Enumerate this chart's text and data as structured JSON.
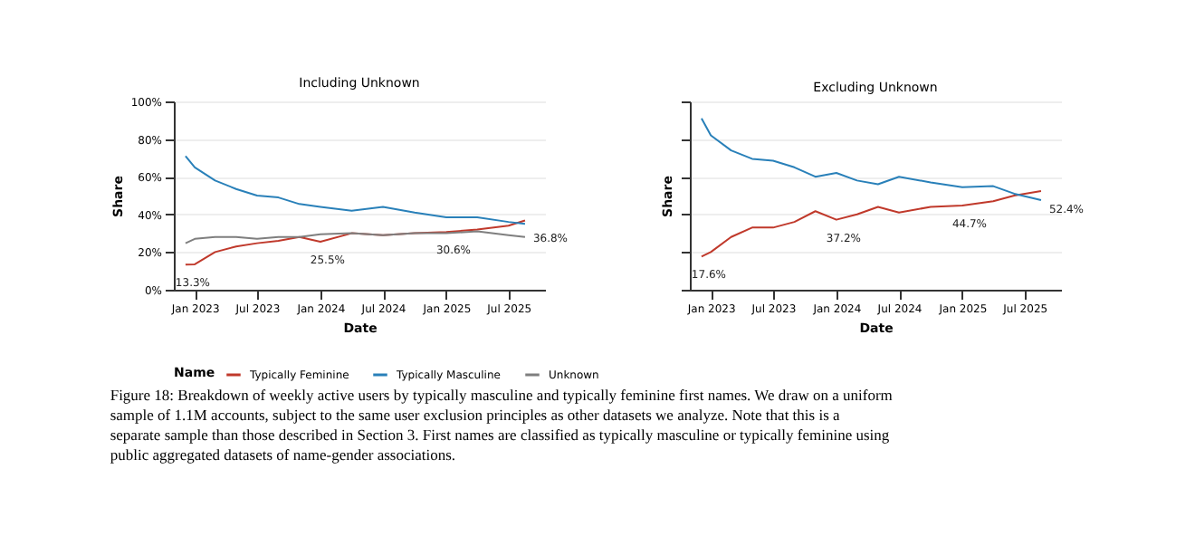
{
  "chart_data": [
    {
      "type": "line",
      "title": "Including Unknown",
      "xlabel": "Date",
      "ylabel": "Share",
      "legend_title": "Name",
      "legend": "bottom",
      "grid": "y",
      "line_style": "solid",
      "marker": "none",
      "x": [
        "2022-12-05",
        "2023-01-01",
        "2023-03-01",
        "2023-05-01",
        "2023-07-01",
        "2023-09-01",
        "2023-11-01",
        "2024-01-01",
        "2024-04-01",
        "2024-07-01",
        "2024-10-01",
        "2025-01-01",
        "2025-04-01",
        "2025-07-01",
        "2025-08-18"
      ],
      "xlim": [
        "2022-11-01",
        "2025-10-15"
      ],
      "xticks": [
        {
          "value": "2023-01-01",
          "label": "Jan 2023"
        },
        {
          "value": "2023-07-01",
          "label": "Jul 2023"
        },
        {
          "value": "2024-01-01",
          "label": "Jan 2024"
        },
        {
          "value": "2024-07-01",
          "label": "Jul 2024"
        },
        {
          "value": "2025-01-01",
          "label": "Jan 2025"
        },
        {
          "value": "2025-07-01",
          "label": "Jul 2025"
        }
      ],
      "ylim": [
        0,
        100
      ],
      "yticks": [
        {
          "value": 0,
          "label": "0%"
        },
        {
          "value": 20,
          "label": "20%"
        },
        {
          "value": 40,
          "label": "40%"
        },
        {
          "value": 60,
          "label": "60%"
        },
        {
          "value": 80,
          "label": "80%"
        },
        {
          "value": 100,
          "label": "100%"
        }
      ],
      "series": [
        {
          "name": "Typically Feminine",
          "color": "#c0392b",
          "values": [
            13.3,
            13.5,
            20,
            23,
            24.7,
            26,
            28,
            25.5,
            30,
            29,
            30,
            30.6,
            32,
            34,
            36.8
          ]
        },
        {
          "name": "Typically Masculine",
          "color": "#2980b9",
          "values": [
            71,
            65,
            58,
            53.5,
            50,
            49,
            45.5,
            44,
            42,
            44,
            41,
            38.5,
            38.5,
            36,
            35
          ]
        },
        {
          "name": "Unknown",
          "color": "#7f7f7f",
          "values": [
            24.7,
            27,
            28,
            28,
            27,
            28,
            28,
            29.5,
            30,
            29,
            30,
            30,
            31,
            29,
            28
          ]
        }
      ],
      "annotations": [
        {
          "text": "13.3%",
          "x": "2022-12-05",
          "y": 13.3
        },
        {
          "text": "25.5%",
          "x": "2024-01-01",
          "y": 25.5
        },
        {
          "text": "30.6%",
          "x": "2025-01-01",
          "y": 30.6
        },
        {
          "text": "36.8%",
          "x": "2025-08-18",
          "y": 36.8
        },
        "Figure 18: Breakdown of weekly active users by typically masculine and typically feminine first names. We draw on a uniform sample of 1.1M accounts, subject to the same user exclusion principles as other datasets we analyze. Note that this is a separate sample than those described in Section 3. First names are classified as typically masculine or typically feminine using public aggregated datasets of name-gender associations."
      ]
    },
    {
      "type": "line",
      "title": "Excluding Unknown",
      "xlabel": "Date",
      "ylabel": "Share",
      "grid": "y",
      "line_style": "solid",
      "marker": "none",
      "tick_labels": "x",
      "x": [
        "2022-12-05",
        "2023-01-01",
        "2023-03-01",
        "2023-05-01",
        "2023-07-01",
        "2023-09-01",
        "2023-11-01",
        "2024-01-01",
        "2024-03-01",
        "2024-05-01",
        "2024-07-01",
        "2024-10-01",
        "2025-01-01",
        "2025-04-01",
        "2025-06-01",
        "2025-08-18"
      ],
      "xlim": [
        "2022-11-01",
        "2025-10-15"
      ],
      "xticks": [
        {
          "value": "2023-01-01",
          "label": "Jan 2023"
        },
        {
          "value": "2023-07-01",
          "label": "Jul 2023"
        },
        {
          "value": "2024-01-01",
          "label": "Jan 2024"
        },
        {
          "value": "2024-07-01",
          "label": "Jul 2024"
        },
        {
          "value": "2025-01-01",
          "label": "Jan 2025"
        },
        {
          "value": "2025-07-01",
          "label": "Jul 2025"
        }
      ],
      "ylim": [
        0,
        100
      ],
      "yticks": [
        {
          "value": 0,
          "label": null
        },
        {
          "value": 20,
          "label": null
        },
        {
          "value": 40,
          "label": null
        },
        {
          "value": 60,
          "label": null
        },
        {
          "value": 80,
          "label": null
        },
        {
          "value": 100,
          "label": null
        }
      ],
      "series": [
        {
          "name": "Typically Feminine",
          "color": "#c0392b",
          "values": [
            17.6,
            20,
            28,
            33,
            33,
            36,
            41.7,
            37.2,
            40,
            44,
            41,
            44,
            44.7,
            47,
            50,
            52.4
          ]
        },
        {
          "name": "Typically Masculine",
          "color": "#2980b9",
          "values": [
            91,
            82,
            74,
            69.5,
            68.5,
            65,
            60,
            62,
            58,
            56,
            60,
            57,
            54.5,
            55,
            51,
            47.6
          ]
        }
      ],
      "annotations": [
        {
          "text": "17.6%",
          "x": "2022-12-05",
          "y": 17.6
        },
        {
          "text": "37.2%",
          "x": "2024-01-01",
          "y": 37.2
        },
        {
          "text": "44.7%",
          "x": "2025-01-01",
          "y": 44.7
        },
        {
          "text": "52.4%",
          "x": "2025-08-18",
          "y": 52.4
        }
      ]
    }
  ]
}
